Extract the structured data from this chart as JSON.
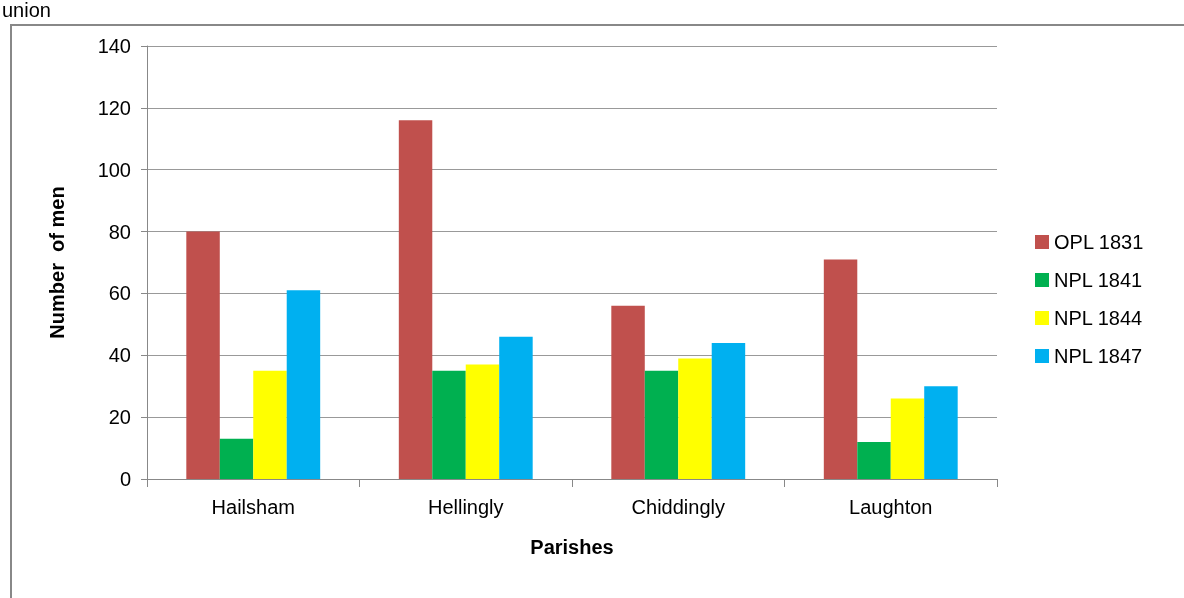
{
  "chart_data": {
    "type": "bar",
    "xlabel": "Parishes",
    "ylabel": "Number  of men",
    "annotations": [
      "union"
    ],
    "categories": [
      "Hailsham",
      "Hellingly",
      "Chiddingly",
      "Laughton"
    ],
    "series": [
      {
        "name": "OPL 1831",
        "color": "#c0504d",
        "values": [
          80,
          116,
          56,
          71
        ]
      },
      {
        "name": "NPL 1841",
        "color": "#00b050",
        "values": [
          13,
          35,
          35,
          12
        ]
      },
      {
        "name": "NPL 1844",
        "color": "#ffff00",
        "values": [
          35,
          37,
          39,
          26
        ]
      },
      {
        "name": "NPL 1847",
        "color": "#00b0f0",
        "values": [
          61,
          46,
          44,
          30
        ]
      }
    ],
    "ylim": [
      0,
      140
    ],
    "yticks": [
      0,
      20,
      40,
      60,
      80,
      100,
      120,
      140
    ],
    "grid": "y",
    "legend": "right"
  }
}
